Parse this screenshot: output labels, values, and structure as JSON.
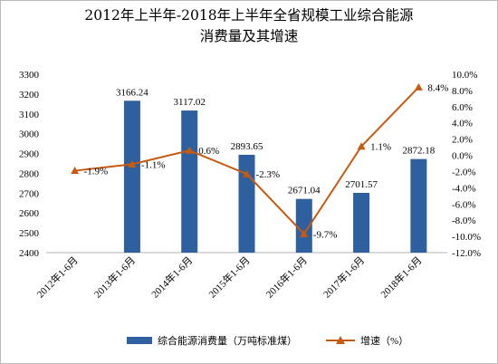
{
  "chart_data": {
    "type": "bar+line",
    "title_line1": "2012年上半年-2018年上半年全省规模工业综合能源",
    "title_line2": "消费量及其增速",
    "categories": [
      "2012年1-6月",
      "2013年1-6月",
      "2014年1-6月",
      "2015年1-6月",
      "2016年1-6月",
      "2017年1-6月",
      "2018年1-6月"
    ],
    "series": [
      {
        "name": "综合能源消费量（万吨标准煤）",
        "type": "bar",
        "axis": "left",
        "values": [
          null,
          3166.24,
          3117.02,
          2893.65,
          2671.04,
          2701.57,
          2872.18
        ],
        "labels": [
          "",
          "3166.24",
          "3117.02",
          "2893.65",
          "2671.04",
          "2701.57",
          "2872.18"
        ],
        "color": "#2e5f9e"
      },
      {
        "name": "增速（%）",
        "type": "line",
        "axis": "right",
        "values": [
          -1.9,
          -1.1,
          0.6,
          -2.3,
          -9.7,
          1.1,
          8.4
        ],
        "labels": [
          "-1.9%",
          "-1.1%",
          "0.6%",
          "-2.3%",
          "-9.7%",
          "1.1%",
          "8.4%"
        ],
        "color": "#c55a11"
      }
    ],
    "y_left": {
      "min": 2400,
      "max": 3300,
      "step": 100,
      "ticks": [
        "2400",
        "2500",
        "2600",
        "2700",
        "2800",
        "2900",
        "3000",
        "3100",
        "3200",
        "3300"
      ]
    },
    "y_right": {
      "min": -12,
      "max": 10,
      "step": 2,
      "ticks": [
        "-12.0%",
        "-10.0%",
        "-8.0%",
        "-6.0%",
        "-4.0%",
        "-2.0%",
        "0.0%",
        "2.0%",
        "4.0%",
        "6.0%",
        "8.0%",
        "10.0%"
      ]
    },
    "grid": false,
    "legend_position": "bottom"
  }
}
